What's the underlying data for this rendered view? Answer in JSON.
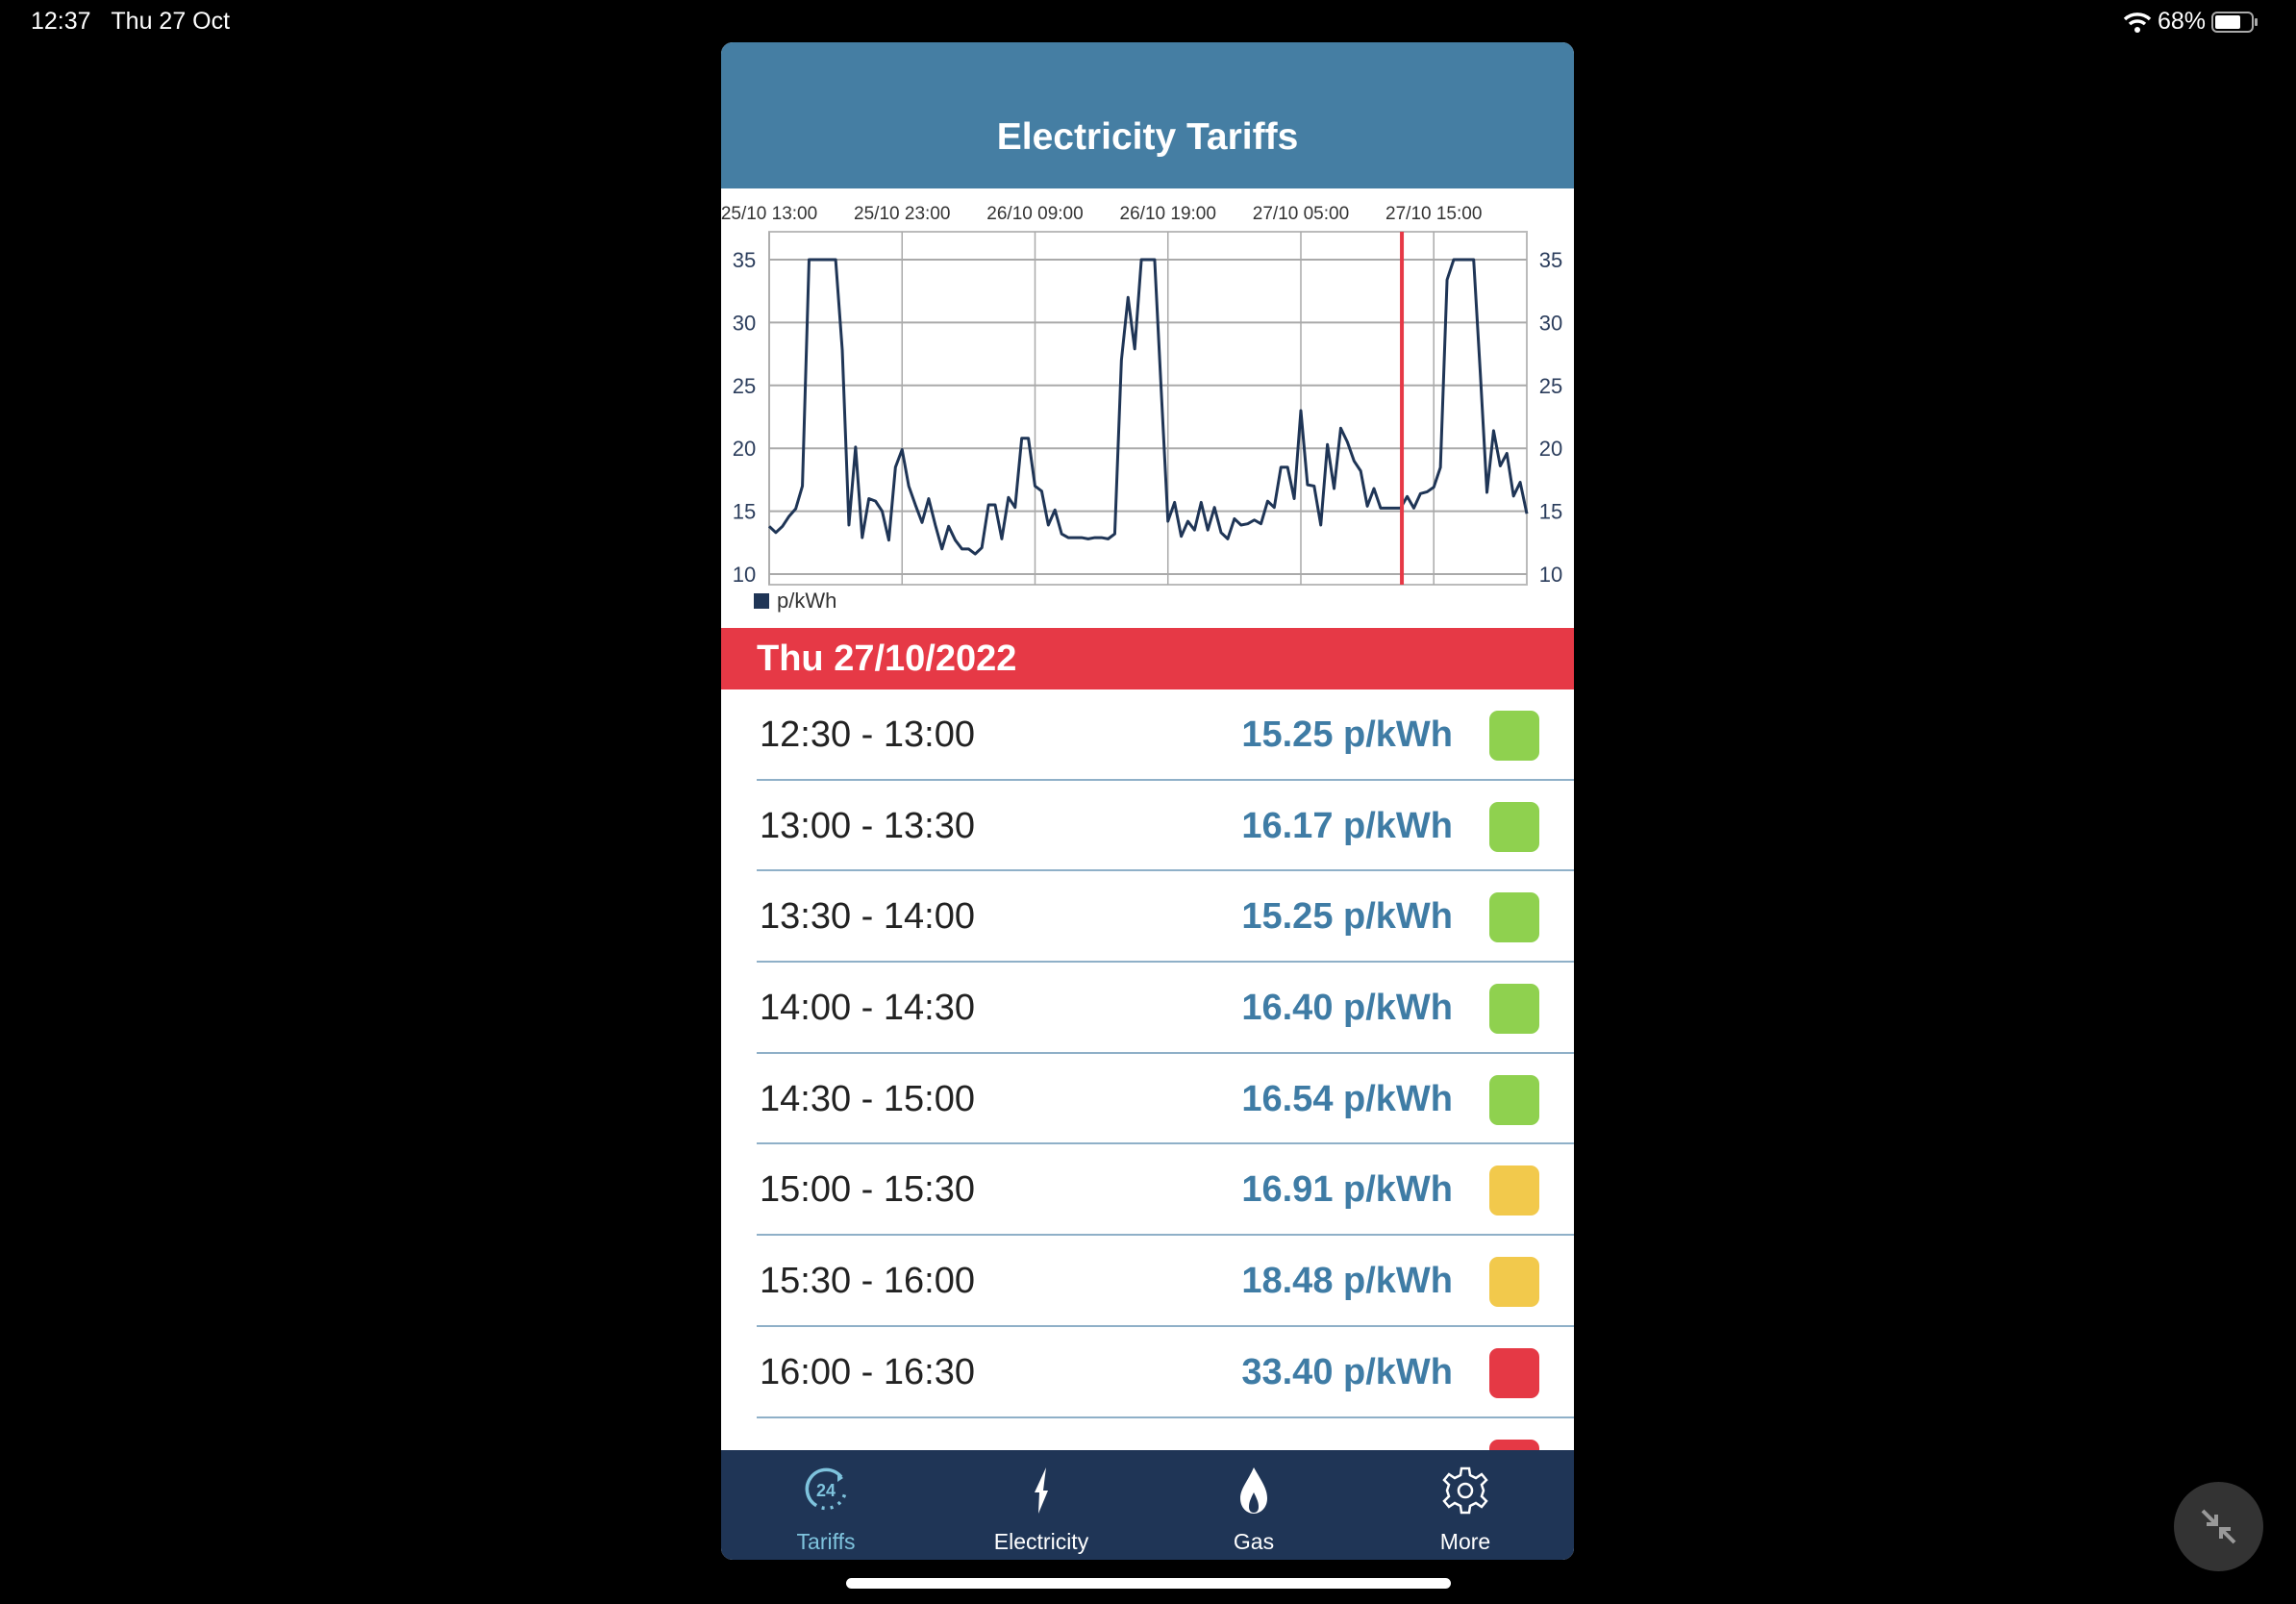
{
  "status_bar": {
    "time": "12:37",
    "date": "Thu 27 Oct",
    "battery": "68%"
  },
  "header": {
    "title": "Electricity Tariffs"
  },
  "chart_data": {
    "type": "line",
    "x_start": "25/10 13:00",
    "x_step_minutes": 30,
    "x_tick_labels": [
      "25/10 13:00",
      "25/10 23:00",
      "26/10 09:00",
      "26/10 19:00",
      "27/10 05:00",
      "27/10 15:00"
    ],
    "y_ticks": [
      10,
      15,
      20,
      25,
      30,
      35
    ],
    "ylim": [
      10,
      35
    ],
    "grid": true,
    "legend": "bottom-left",
    "now_marker": "27/10 12:37",
    "series": [
      {
        "name": "p/kWh",
        "color": "#1f3556",
        "values": [
          13.8,
          13.3,
          13.8,
          14.6,
          15.2,
          17.0,
          35,
          35,
          35,
          35,
          35,
          27.8,
          13.9,
          20.1,
          12.9,
          16.0,
          15.8,
          15.0,
          12.7,
          18.5,
          19.9,
          17.0,
          15.5,
          14.1,
          16.0,
          13.9,
          12.0,
          13.8,
          12.7,
          12.0,
          12.0,
          11.6,
          12.1,
          15.5,
          15.5,
          12.8,
          16.1,
          15.3,
          20.8,
          20.8,
          17.0,
          16.6,
          13.9,
          15.1,
          13.2,
          12.9,
          12.9,
          12.9,
          12.8,
          12.9,
          12.9,
          12.8,
          13.2,
          27.0,
          32.0,
          27.9,
          35,
          35,
          35,
          24.5,
          14.2,
          15.7,
          13.0,
          14.2,
          13.5,
          15.7,
          13.5,
          15.3,
          13.3,
          12.8,
          14.4,
          13.9,
          14.0,
          14.3,
          14.0,
          15.8,
          15.3,
          18.5,
          18.5,
          16.0,
          23.0,
          17.1,
          17.0,
          13.9,
          20.3,
          16.8,
          21.6,
          20.5,
          19.0,
          18.2,
          15.4,
          16.8,
          15.25,
          15.25,
          15.25,
          15.25,
          16.17,
          15.25,
          16.4,
          16.54,
          16.91,
          18.48,
          33.4,
          35,
          35,
          35,
          35,
          26.0,
          16.5,
          21.4,
          18.6,
          19.6,
          16.2,
          17.3,
          14.8
        ]
      }
    ]
  },
  "day_header": "Thu 27/10/2022",
  "colors": {
    "green": "#8fd14f",
    "amber": "#f2c94c",
    "red": "#e53945"
  },
  "rows": [
    {
      "time": "12:30 - 13:00",
      "price": "15.25 p/kWh",
      "level": "green"
    },
    {
      "time": "13:00 - 13:30",
      "price": "16.17 p/kWh",
      "level": "green"
    },
    {
      "time": "13:30 - 14:00",
      "price": "15.25 p/kWh",
      "level": "green"
    },
    {
      "time": "14:00 - 14:30",
      "price": "16.40 p/kWh",
      "level": "green"
    },
    {
      "time": "14:30 - 15:00",
      "price": "16.54 p/kWh",
      "level": "green"
    },
    {
      "time": "15:00 - 15:30",
      "price": "16.91 p/kWh",
      "level": "amber"
    },
    {
      "time": "15:30 - 16:00",
      "price": "18.48 p/kWh",
      "level": "amber"
    },
    {
      "time": "16:00 - 16:30",
      "price": "33.40 p/kWh",
      "level": "red"
    },
    {
      "time": "",
      "price": "",
      "level": "red"
    }
  ],
  "tabs": [
    {
      "label": "Tariffs",
      "icon": "clock-24-icon",
      "active": true
    },
    {
      "label": "Electricity",
      "icon": "lightning-icon",
      "active": false
    },
    {
      "label": "Gas",
      "icon": "flame-icon",
      "active": false
    },
    {
      "label": "More",
      "icon": "gear-icon",
      "active": false
    }
  ]
}
